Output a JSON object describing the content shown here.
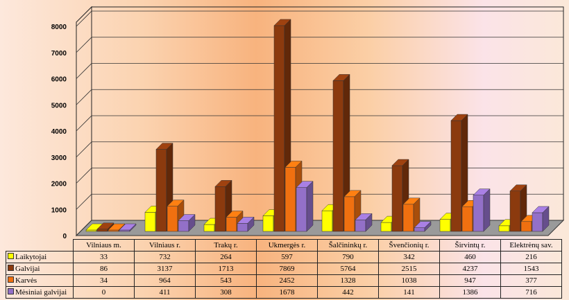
{
  "chart_data": {
    "type": "bar",
    "title": "",
    "categories": [
      "Vilniaus m.",
      "Vilniaus r.",
      "Trakų r.",
      "Ukmergės r.",
      "Šalčininkų r.",
      "Švenčionių r.",
      "Širvintų r.",
      "Elektrėnų sav."
    ],
    "series": [
      {
        "name": "Laikytojai",
        "color": "#ffff00",
        "values": [
          33,
          732,
          264,
          597,
          790,
          342,
          460,
          216
        ]
      },
      {
        "name": "Galvijai",
        "color": "#8b3a0e",
        "values": [
          86,
          3137,
          1713,
          7869,
          5764,
          2515,
          4237,
          1543
        ]
      },
      {
        "name": "Karvės",
        "color": "#f07010",
        "values": [
          34,
          964,
          543,
          2452,
          1328,
          1038,
          947,
          377
        ]
      },
      {
        "name": "Mėsiniai galvijai",
        "color": "#9370c8",
        "values": [
          0,
          411,
          308,
          1678,
          442,
          141,
          1386,
          716
        ]
      }
    ],
    "yticks": [
      "0",
      "1000",
      "2000",
      "3000",
      "4000",
      "5000",
      "6000",
      "7000",
      "8000"
    ],
    "ylim": [
      0,
      8000
    ],
    "grid": true,
    "legend": "table-bottom"
  }
}
